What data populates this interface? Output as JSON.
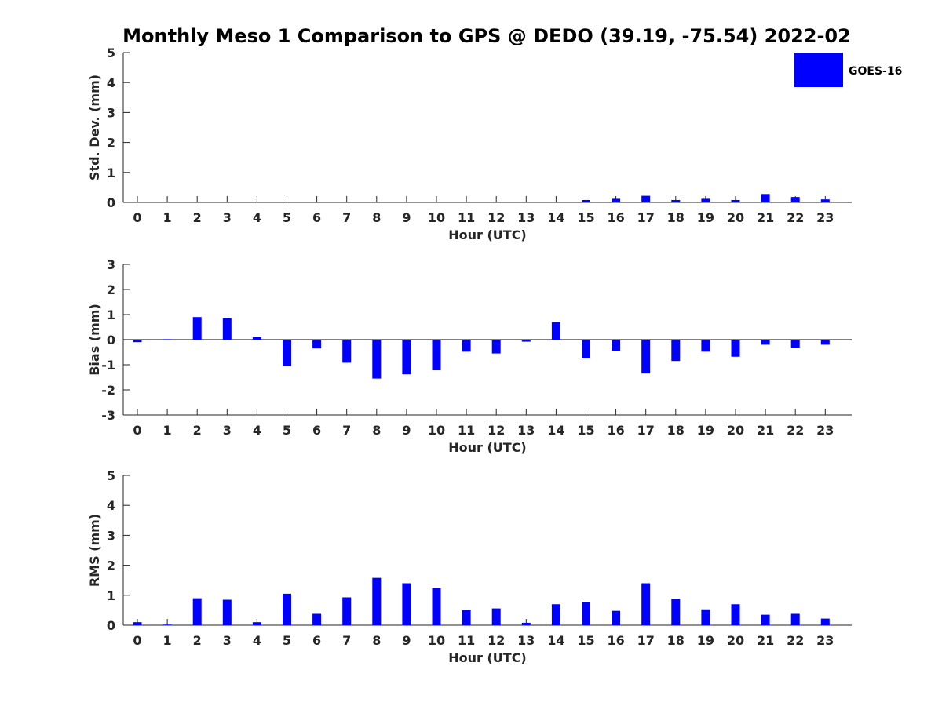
{
  "title": "Monthly Meso 1 Comparison to GPS @ DEDO (39.19, -75.54) 2022-02",
  "legend": {
    "label": "GOES-16",
    "color": "#0000ff"
  },
  "chart_data": [
    {
      "type": "bar",
      "ylabel": "Std. Dev. (mm)",
      "xlabel": "Hour (UTC)",
      "ylim": [
        0,
        5
      ],
      "yticks": [
        "0",
        "1",
        "2",
        "3",
        "4",
        "5"
      ],
      "categories": [
        "0",
        "1",
        "2",
        "3",
        "4",
        "5",
        "6",
        "7",
        "8",
        "9",
        "10",
        "11",
        "12",
        "13",
        "14",
        "15",
        "16",
        "17",
        "18",
        "19",
        "20",
        "21",
        "22",
        "23"
      ],
      "series": [
        {
          "name": "GOES-16",
          "values": [
            0,
            0,
            0,
            0,
            0,
            0,
            0,
            0,
            0,
            0,
            0,
            0,
            0,
            0,
            0,
            0.08,
            0.12,
            0.22,
            0.08,
            0.12,
            0.08,
            0.28,
            0.18,
            0.1
          ]
        }
      ],
      "legend": "top-right",
      "grid": false
    },
    {
      "type": "bar",
      "ylabel": "Bias (mm)",
      "xlabel": "Hour (UTC)",
      "ylim": [
        -3,
        3
      ],
      "yticks": [
        "-3",
        "-2",
        "-1",
        "0",
        "1",
        "2",
        "3"
      ],
      "categories": [
        "0",
        "1",
        "2",
        "3",
        "4",
        "5",
        "6",
        "7",
        "8",
        "9",
        "10",
        "11",
        "12",
        "13",
        "14",
        "15",
        "16",
        "17",
        "18",
        "19",
        "20",
        "21",
        "22",
        "23"
      ],
      "series": [
        {
          "name": "GOES-16",
          "values": [
            -0.1,
            0.02,
            0.9,
            0.85,
            0.1,
            -1.05,
            -0.35,
            -0.92,
            -1.55,
            -1.38,
            -1.22,
            -0.48,
            -0.55,
            -0.08,
            0.7,
            -0.75,
            -0.45,
            -1.35,
            -0.85,
            -0.48,
            -0.68,
            -0.2,
            -0.32,
            -0.2
          ]
        }
      ],
      "grid": false
    },
    {
      "type": "bar",
      "ylabel": "RMS (mm)",
      "xlabel": "Hour (UTC)",
      "ylim": [
        0,
        5
      ],
      "yticks": [
        "0",
        "1",
        "2",
        "3",
        "4",
        "5"
      ],
      "categories": [
        "0",
        "1",
        "2",
        "3",
        "4",
        "5",
        "6",
        "7",
        "8",
        "9",
        "10",
        "11",
        "12",
        "13",
        "14",
        "15",
        "16",
        "17",
        "18",
        "19",
        "20",
        "21",
        "22",
        "23"
      ],
      "series": [
        {
          "name": "GOES-16",
          "values": [
            0.1,
            0.02,
            0.9,
            0.85,
            0.1,
            1.05,
            0.38,
            0.93,
            1.58,
            1.4,
            1.24,
            0.5,
            0.56,
            0.08,
            0.7,
            0.77,
            0.48,
            1.4,
            0.88,
            0.53,
            0.7,
            0.35,
            0.38,
            0.22
          ]
        }
      ],
      "grid": false
    }
  ]
}
